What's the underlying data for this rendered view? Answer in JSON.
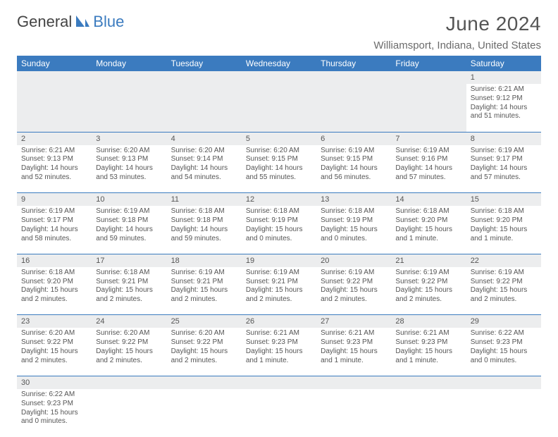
{
  "brand": {
    "a": "General",
    "b": "Blue"
  },
  "title": "June 2024",
  "location": "Williamsport, Indiana, United States",
  "colors": {
    "accent": "#3b7bbf",
    "header_bg": "#3b7bbf",
    "header_text": "#ffffff",
    "daynum_bg": "#ecedee",
    "text": "#555555",
    "page_bg": "#ffffff"
  },
  "weekdays": [
    "Sunday",
    "Monday",
    "Tuesday",
    "Wednesday",
    "Thursday",
    "Friday",
    "Saturday"
  ],
  "weeks": [
    [
      null,
      null,
      null,
      null,
      null,
      null,
      {
        "n": "1",
        "sr": "Sunrise: 6:21 AM",
        "ss": "Sunset: 9:12 PM",
        "dl": "Daylight: 14 hours and 51 minutes."
      }
    ],
    [
      {
        "n": "2",
        "sr": "Sunrise: 6:21 AM",
        "ss": "Sunset: 9:13 PM",
        "dl": "Daylight: 14 hours and 52 minutes."
      },
      {
        "n": "3",
        "sr": "Sunrise: 6:20 AM",
        "ss": "Sunset: 9:13 PM",
        "dl": "Daylight: 14 hours and 53 minutes."
      },
      {
        "n": "4",
        "sr": "Sunrise: 6:20 AM",
        "ss": "Sunset: 9:14 PM",
        "dl": "Daylight: 14 hours and 54 minutes."
      },
      {
        "n": "5",
        "sr": "Sunrise: 6:20 AM",
        "ss": "Sunset: 9:15 PM",
        "dl": "Daylight: 14 hours and 55 minutes."
      },
      {
        "n": "6",
        "sr": "Sunrise: 6:19 AM",
        "ss": "Sunset: 9:15 PM",
        "dl": "Daylight: 14 hours and 56 minutes."
      },
      {
        "n": "7",
        "sr": "Sunrise: 6:19 AM",
        "ss": "Sunset: 9:16 PM",
        "dl": "Daylight: 14 hours and 57 minutes."
      },
      {
        "n": "8",
        "sr": "Sunrise: 6:19 AM",
        "ss": "Sunset: 9:17 PM",
        "dl": "Daylight: 14 hours and 57 minutes."
      }
    ],
    [
      {
        "n": "9",
        "sr": "Sunrise: 6:19 AM",
        "ss": "Sunset: 9:17 PM",
        "dl": "Daylight: 14 hours and 58 minutes."
      },
      {
        "n": "10",
        "sr": "Sunrise: 6:19 AM",
        "ss": "Sunset: 9:18 PM",
        "dl": "Daylight: 14 hours and 59 minutes."
      },
      {
        "n": "11",
        "sr": "Sunrise: 6:18 AM",
        "ss": "Sunset: 9:18 PM",
        "dl": "Daylight: 14 hours and 59 minutes."
      },
      {
        "n": "12",
        "sr": "Sunrise: 6:18 AM",
        "ss": "Sunset: 9:19 PM",
        "dl": "Daylight: 15 hours and 0 minutes."
      },
      {
        "n": "13",
        "sr": "Sunrise: 6:18 AM",
        "ss": "Sunset: 9:19 PM",
        "dl": "Daylight: 15 hours and 0 minutes."
      },
      {
        "n": "14",
        "sr": "Sunrise: 6:18 AM",
        "ss": "Sunset: 9:20 PM",
        "dl": "Daylight: 15 hours and 1 minute."
      },
      {
        "n": "15",
        "sr": "Sunrise: 6:18 AM",
        "ss": "Sunset: 9:20 PM",
        "dl": "Daylight: 15 hours and 1 minute."
      }
    ],
    [
      {
        "n": "16",
        "sr": "Sunrise: 6:18 AM",
        "ss": "Sunset: 9:20 PM",
        "dl": "Daylight: 15 hours and 2 minutes."
      },
      {
        "n": "17",
        "sr": "Sunrise: 6:18 AM",
        "ss": "Sunset: 9:21 PM",
        "dl": "Daylight: 15 hours and 2 minutes."
      },
      {
        "n": "18",
        "sr": "Sunrise: 6:19 AM",
        "ss": "Sunset: 9:21 PM",
        "dl": "Daylight: 15 hours and 2 minutes."
      },
      {
        "n": "19",
        "sr": "Sunrise: 6:19 AM",
        "ss": "Sunset: 9:21 PM",
        "dl": "Daylight: 15 hours and 2 minutes."
      },
      {
        "n": "20",
        "sr": "Sunrise: 6:19 AM",
        "ss": "Sunset: 9:22 PM",
        "dl": "Daylight: 15 hours and 2 minutes."
      },
      {
        "n": "21",
        "sr": "Sunrise: 6:19 AM",
        "ss": "Sunset: 9:22 PM",
        "dl": "Daylight: 15 hours and 2 minutes."
      },
      {
        "n": "22",
        "sr": "Sunrise: 6:19 AM",
        "ss": "Sunset: 9:22 PM",
        "dl": "Daylight: 15 hours and 2 minutes."
      }
    ],
    [
      {
        "n": "23",
        "sr": "Sunrise: 6:20 AM",
        "ss": "Sunset: 9:22 PM",
        "dl": "Daylight: 15 hours and 2 minutes."
      },
      {
        "n": "24",
        "sr": "Sunrise: 6:20 AM",
        "ss": "Sunset: 9:22 PM",
        "dl": "Daylight: 15 hours and 2 minutes."
      },
      {
        "n": "25",
        "sr": "Sunrise: 6:20 AM",
        "ss": "Sunset: 9:22 PM",
        "dl": "Daylight: 15 hours and 2 minutes."
      },
      {
        "n": "26",
        "sr": "Sunrise: 6:21 AM",
        "ss": "Sunset: 9:23 PM",
        "dl": "Daylight: 15 hours and 1 minute."
      },
      {
        "n": "27",
        "sr": "Sunrise: 6:21 AM",
        "ss": "Sunset: 9:23 PM",
        "dl": "Daylight: 15 hours and 1 minute."
      },
      {
        "n": "28",
        "sr": "Sunrise: 6:21 AM",
        "ss": "Sunset: 9:23 PM",
        "dl": "Daylight: 15 hours and 1 minute."
      },
      {
        "n": "29",
        "sr": "Sunrise: 6:22 AM",
        "ss": "Sunset: 9:23 PM",
        "dl": "Daylight: 15 hours and 0 minutes."
      }
    ],
    [
      {
        "n": "30",
        "sr": "Sunrise: 6:22 AM",
        "ss": "Sunset: 9:23 PM",
        "dl": "Daylight: 15 hours and 0 minutes."
      },
      null,
      null,
      null,
      null,
      null,
      null
    ]
  ]
}
